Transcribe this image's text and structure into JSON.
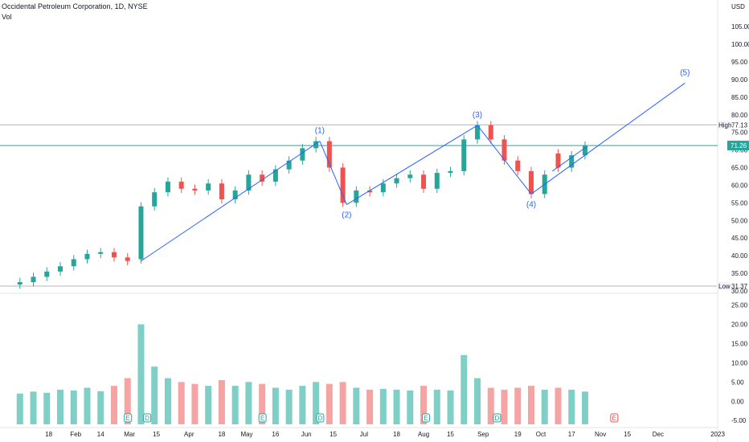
{
  "header": {
    "symbol_line": "Occidental Petroleum Corporation, 1D, NYSE",
    "indicator": "Vol"
  },
  "axis": {
    "currency": "USD",
    "badges": {
      "high": {
        "label": "High",
        "value": "77.13"
      },
      "last": {
        "value": "71.26"
      },
      "low": {
        "label": "Low",
        "value": "31.37"
      }
    }
  },
  "colors": {
    "up": "#26a69a",
    "down": "#ef5350",
    "vol_up": "#7fcfc6",
    "vol_down": "#f5a3a3",
    "wave": "#2962ff",
    "last_line": "#26a69a",
    "level_line": "#b2b5be",
    "event_badge": "#26a69a",
    "event_badge_future": "#ef5350"
  },
  "chart_data": [
    {
      "type": "candlestick",
      "title": "",
      "price_ticks": [
        "30.00",
        "35.00",
        "40.00",
        "45.00",
        "50.00",
        "55.00",
        "60.00",
        "65.00",
        "70.00",
        "75.00",
        "80.00",
        "85.00",
        "90.00",
        "95.00",
        "100.00",
        "105.00"
      ],
      "ylim": [
        30,
        108
      ],
      "x_ticks": [
        "18",
        "Feb",
        "14",
        "Mar",
        "15",
        "Apr",
        "18",
        "May",
        "16",
        "Jun",
        "15",
        "Jul",
        "18",
        "Aug",
        "15",
        "Sep",
        "19",
        "Oct",
        "17",
        "Nov",
        "15",
        "Dec",
        "2023"
      ],
      "x_tick_dates": [
        "2022-01-18",
        "2022-02-01",
        "2022-02-14",
        "2022-03-01",
        "2022-03-15",
        "2022-04-01",
        "2022-04-18",
        "2022-05-01",
        "2022-05-16",
        "2022-06-01",
        "2022-06-15",
        "2022-07-01",
        "2022-07-18",
        "2022-08-01",
        "2022-08-15",
        "2022-09-01",
        "2022-09-19",
        "2022-10-01",
        "2022-10-17",
        "2022-11-01",
        "2022-11-15",
        "2022-12-01",
        "2023-01-01"
      ],
      "levels": {
        "high": 77.13,
        "last": 71.26,
        "low": 31.37
      },
      "wave_labels": [
        "(1)",
        "(2)",
        "(3)",
        "(4)",
        "(5)"
      ],
      "wave_points": [
        {
          "date": "2022-03-07",
          "value": 38.5,
          "label": ""
        },
        {
          "date": "2022-06-08",
          "value": 72.5,
          "label": "(1)"
        },
        {
          "date": "2022-06-22",
          "value": 54.5,
          "label": "(2)"
        },
        {
          "date": "2022-08-29",
          "value": 77.0,
          "label": "(3)"
        },
        {
          "date": "2022-09-26",
          "value": 57.5,
          "label": "(4)"
        },
        {
          "date": "2022-12-15",
          "value": 89.0,
          "label": "(5)"
        }
      ],
      "segment": {
        "from": {
          "date": "2022-10-07",
          "value": 64.0
        },
        "to": {
          "date": "2022-10-25",
          "value": 71.0
        }
      },
      "series": [
        {
          "x": [
            "2022-01-03",
            "2022-01-10",
            "2022-01-17",
            "2022-01-24",
            "2022-01-31",
            "2022-02-07",
            "2022-02-14",
            "2022-02-21",
            "2022-02-28",
            "2022-03-07",
            "2022-03-14",
            "2022-03-21",
            "2022-03-28",
            "2022-04-04",
            "2022-04-11",
            "2022-04-18",
            "2022-04-25",
            "2022-05-02",
            "2022-05-09",
            "2022-05-16",
            "2022-05-23",
            "2022-05-30",
            "2022-06-06",
            "2022-06-13",
            "2022-06-20",
            "2022-06-27",
            "2022-07-04",
            "2022-07-11",
            "2022-07-18",
            "2022-07-25",
            "2022-08-01",
            "2022-08-08",
            "2022-08-15",
            "2022-08-22",
            "2022-08-29",
            "2022-09-05",
            "2022-09-12",
            "2022-09-19",
            "2022-09-26",
            "2022-10-03",
            "2022-10-10",
            "2022-10-17",
            "2022-10-24"
          ],
          "close": [
            32.5,
            34.0,
            35.5,
            37.0,
            39.0,
            40.5,
            41.0,
            39.5,
            38.5,
            54.0,
            58.0,
            61.0,
            59.0,
            58.5,
            60.5,
            56.0,
            58.5,
            63.0,
            61.0,
            64.5,
            67.0,
            70.5,
            72.5,
            65.0,
            55.0,
            58.5,
            58.0,
            60.5,
            62.0,
            63.0,
            59.0,
            63.5,
            64.0,
            73.0,
            77.0,
            73.0,
            67.0,
            64.0,
            57.5,
            63.0,
            65.0,
            68.5,
            71.26
          ],
          "open": [
            31.8,
            32.5,
            34.0,
            35.5,
            37.0,
            39.0,
            40.5,
            41.0,
            39.5,
            39.0,
            54.0,
            58.0,
            61.0,
            59.0,
            58.5,
            60.5,
            56.0,
            58.5,
            63.0,
            61.0,
            64.5,
            67.0,
            70.5,
            72.5,
            65.0,
            55.0,
            58.5,
            58.0,
            60.5,
            62.0,
            63.0,
            59.0,
            63.5,
            64.0,
            73.0,
            77.0,
            73.0,
            67.0,
            64.0,
            57.5,
            69.0,
            65.0,
            68.5
          ],
          "volume": [
            2.0,
            2.5,
            2.2,
            3.0,
            2.8,
            3.5,
            2.6,
            4.0,
            6.0,
            20.0,
            9.0,
            6.0,
            5.0,
            4.5,
            4.0,
            5.5,
            4.0,
            5.0,
            4.5,
            3.5,
            3.0,
            4.0,
            5.0,
            4.5,
            5.0,
            3.5,
            3.0,
            3.2,
            3.0,
            2.8,
            4.0,
            3.0,
            2.8,
            12.0,
            6.0,
            3.5,
            3.0,
            3.5,
            4.0,
            3.0,
            3.5,
            3.0,
            2.5
          ]
        }
      ]
    },
    {
      "type": "bar",
      "title": "",
      "ylabel": "",
      "vol_ticks": [
        "-5.00",
        "0.00",
        "5.00",
        "10.00",
        "15.00",
        "20.00",
        "25.00"
      ],
      "ylim": [
        -6,
        27
      ],
      "event_markers": [
        {
          "date": "2022-02-28",
          "label": "E"
        },
        {
          "date": "2022-03-10",
          "label": "D"
        },
        {
          "date": "2022-05-09",
          "label": "E"
        },
        {
          "date": "2022-06-08",
          "label": "D"
        },
        {
          "date": "2022-08-02",
          "label": "E"
        },
        {
          "date": "2022-09-08",
          "label": "D"
        },
        {
          "date": "2022-11-08",
          "label": "E"
        }
      ]
    }
  ]
}
